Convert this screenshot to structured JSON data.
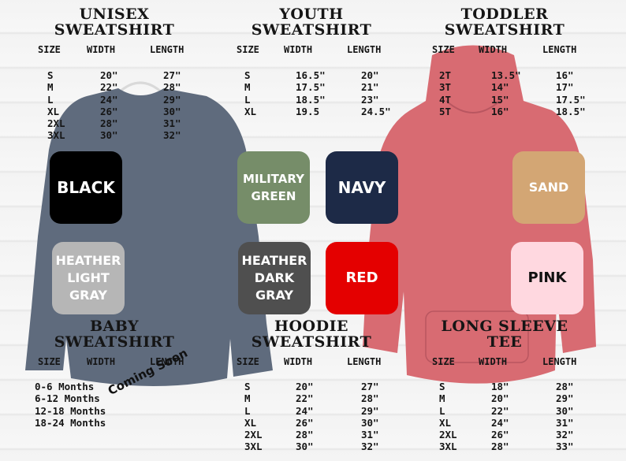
{
  "sections": {
    "unisex": {
      "title": "UNISEX\nSWEATSHIRT",
      "headers": [
        "SIZE",
        "WIDTH",
        "LENGTH"
      ],
      "sizes": [
        "S",
        "M",
        "L",
        "XL",
        "2XL",
        "3XL"
      ],
      "widths": [
        "20\"",
        "22\"",
        "24\"",
        "26\"",
        "28\"",
        "30\""
      ],
      "lengths": [
        "27\"",
        "28\"",
        "29\"",
        "30\"",
        "31\"",
        "32\""
      ]
    },
    "youth": {
      "title": "YOUTH\nSWEATSHIRT",
      "headers": [
        "SIZE",
        "WIDTH",
        "LENGTH"
      ],
      "sizes": [
        "S",
        "M",
        "L",
        "XL"
      ],
      "widths": [
        "16.5\"",
        "17.5\"",
        "18.5\"",
        "19.5"
      ],
      "lengths": [
        "20\"",
        "21\"",
        "23\"",
        "24.5\""
      ]
    },
    "toddler": {
      "title": "TODDLER\nSWEATSHIRT",
      "headers": [
        "SIZE",
        "WIDTH",
        "LENGTH"
      ],
      "sizes": [
        "2T",
        "3T",
        "4T",
        "5T"
      ],
      "widths": [
        "13.5\"",
        "14\"",
        "15\"",
        "16\""
      ],
      "lengths": [
        "16\"",
        "17\"",
        "17.5\"",
        "18.5\""
      ]
    },
    "baby": {
      "title": "BABY\nSWEATSHIRT",
      "headers": [
        "SIZE",
        "WIDTH",
        "LENGTH"
      ],
      "sizes": [
        "0-6 Months",
        "6-12 Months",
        "12-18 Months",
        "18-24 Months"
      ],
      "note": "Coming Soon"
    },
    "hoodie": {
      "title": "HOODIE\nSWEATSHIRT",
      "headers": [
        "SIZE",
        "WIDTH",
        "LENGTH"
      ],
      "sizes": [
        "S",
        "M",
        "L",
        "XL",
        "2XL",
        "3XL"
      ],
      "widths": [
        "20\"",
        "22\"",
        "24\"",
        "26\"",
        "28\"",
        "30\""
      ],
      "lengths": [
        "27\"",
        "28\"",
        "29\"",
        "30\"",
        "31\"",
        "32\""
      ]
    },
    "longsleeve": {
      "title": "LONG SLEEVE\nTEE",
      "headers": [
        "SIZE",
        "WIDTH",
        "LENGTH"
      ],
      "sizes": [
        "S",
        "M",
        "L",
        "XL",
        "2XL",
        "3XL"
      ],
      "widths": [
        "18\"",
        "20\"",
        "22\"",
        "24\"",
        "26\"",
        "28\""
      ],
      "lengths": [
        "28\"",
        "29\"",
        "30\"",
        "31\"",
        "32\"",
        "33\""
      ]
    }
  },
  "swatches": [
    {
      "id": "black",
      "label": "BLACK",
      "color": "#000000",
      "text_color": "#ffffff"
    },
    {
      "id": "heather-light-gray",
      "label": "HEATHER\nLIGHT\nGRAY",
      "color": "#b6b6b6",
      "text_color": "#ffffff"
    },
    {
      "id": "military-green",
      "label": "MILITARY\nGREEN",
      "color": "#768d69",
      "text_color": "#ffffff"
    },
    {
      "id": "heather-dark-gray",
      "label": "HEATHER\nDARK\nGRAY",
      "color": "#4f4f4f",
      "text_color": "#ffffff"
    },
    {
      "id": "navy",
      "label": "NAVY",
      "color": "#1d2a47",
      "text_color": "#ffffff"
    },
    {
      "id": "red",
      "label": "RED",
      "color": "#e40000",
      "text_color": "#ffffff"
    },
    {
      "id": "sand",
      "label": "SAND",
      "color": "#d3a674",
      "text_color": "#ffffff"
    },
    {
      "id": "pink",
      "label": "PINK",
      "color": "#ffd8e0",
      "text_color": "#111111"
    }
  ],
  "garments": {
    "sweatshirt_color": "#5f6b7d",
    "hoodie_color": "#d86b72"
  }
}
